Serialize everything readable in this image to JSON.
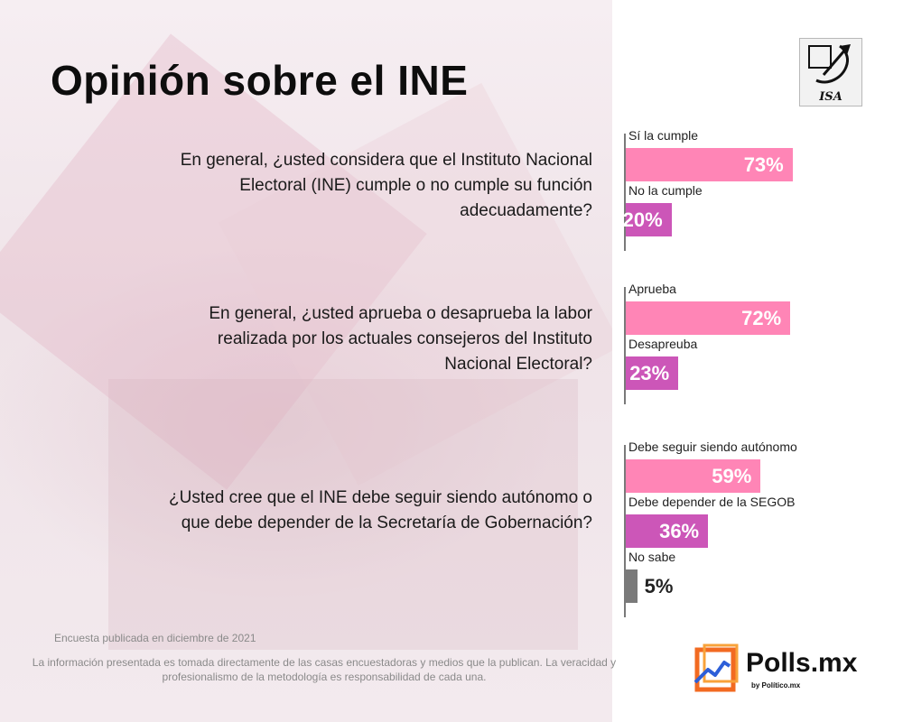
{
  "title": "Opinión sobre el INE",
  "colors": {
    "primary": "#ff85b6",
    "secondary": "#cc56b8",
    "other": "#7a7a7a",
    "axis": "#7a7a7a"
  },
  "chart_data": [
    {
      "type": "bar",
      "question": "En general, ¿usted considera que el Instituto Nacional Electoral (INE) cumple o no cumple su función adecuadamente?",
      "categories": [
        "Sí la cumple",
        "No la cumple"
      ],
      "values": [
        73,
        20
      ],
      "value_labels": [
        "73%",
        "20%"
      ],
      "colors": [
        "#ff85b6",
        "#cc56b8"
      ],
      "xlim": [
        0,
        100
      ]
    },
    {
      "type": "bar",
      "question": "En general, ¿usted aprueba o desaprueba la labor realizada por los actuales consejeros del Instituto Nacional Electoral?",
      "categories": [
        "Aprueba",
        "Desapreuba"
      ],
      "values": [
        72,
        23
      ],
      "value_labels": [
        "72%",
        "23%"
      ],
      "colors": [
        "#ff85b6",
        "#cc56b8"
      ],
      "xlim": [
        0,
        100
      ]
    },
    {
      "type": "bar",
      "question": "¿Usted cree que el INE debe seguir siendo autónomo o que debe depender de la Secretaría de Gobernación?",
      "categories": [
        "Debe seguir siendo autónomo",
        "Debe depender de la SEGOB",
        "No sabe"
      ],
      "values": [
        59,
        36,
        5
      ],
      "value_labels": [
        "59%",
        "36%",
        "5%"
      ],
      "colors": [
        "#ff85b6",
        "#cc56b8",
        "#7a7a7a"
      ],
      "xlim": [
        0,
        100
      ]
    }
  ],
  "logos": {
    "pollster": "ISA",
    "brand_name": "Polls.mx",
    "brand_byline": "by Político.mx"
  },
  "footer": {
    "date": "Encuesta publicada en diciembre de 2021",
    "disclaimer": "La información presentada es tomada directamente de las casas encuestadoras y medios que la publican. La veracidad y profesionalismo de la metodología es responsabilidad de cada una."
  }
}
